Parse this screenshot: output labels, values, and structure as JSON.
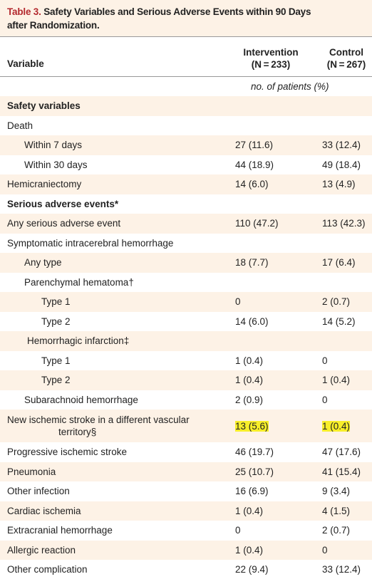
{
  "header": {
    "label": "Table 3.",
    "title": [
      "Safety Variables and Serious Adverse Events within 90 Days",
      "after Randomization."
    ]
  },
  "table": {
    "columns": [
      [
        "Variable"
      ],
      [
        "Intervention",
        "(N = 233)"
      ],
      [
        "Control",
        "(N = 267)"
      ]
    ],
    "unit": "no. of patients (%)",
    "rows": [
      [
        "Safety variables"
      ],
      [
        "Death"
      ],
      [
        "Within 7 days",
        "27 (11.6)",
        "33 (12.4)"
      ],
      [
        "Within 30 days",
        "44 (18.9)",
        "49 (18.4)"
      ],
      [
        "Hemicraniectomy",
        "14 (6.0)",
        "13 (4.9)"
      ],
      [
        "Serious adverse events*"
      ],
      [
        "Any serious adverse event",
        "110 (47.2)",
        "113 (42.3)"
      ],
      [
        "Symptomatic intracerebral hemorrhage"
      ],
      [
        "Any type",
        "18 (7.7)",
        "17 (6.4)"
      ],
      [
        "Parenchymal hematoma†"
      ],
      [
        "Type 1",
        "0",
        "2 (0.7)"
      ],
      [
        "Type 2",
        "14 (6.0)",
        "14 (5.2)"
      ],
      [
        "Hemorrhagic infarction‡"
      ],
      [
        "Type 1",
        "1 (0.4)",
        "0"
      ],
      [
        "Type 2",
        "1 (0.4)",
        "1 (0.4)"
      ],
      [
        "Subarachnoid hemorrhage",
        "2 (0.9)",
        "0"
      ],
      [
        "New ischemic stroke in a different vascular territory§",
        "13 (5.6)",
        "1 (0.4)"
      ],
      [
        "Progressive ischemic stroke",
        "46 (19.7)",
        "47 (17.6)"
      ],
      [
        "Pneumonia",
        "25 (10.7)",
        "41 (15.4)"
      ],
      [
        "Other infection",
        "16 (6.9)",
        "9 (3.4)"
      ],
      [
        "Cardiac ischemia",
        "1 (0.4)",
        "4 (1.5)"
      ],
      [
        "Extracranial hemorrhage",
        "0",
        "2 (0.7)"
      ],
      [
        "Allergic reaction",
        "1 (0.4)",
        "0"
      ],
      [
        "Other complication",
        "22 (9.4)",
        "33 (12.4)"
      ]
    ]
  }
}
